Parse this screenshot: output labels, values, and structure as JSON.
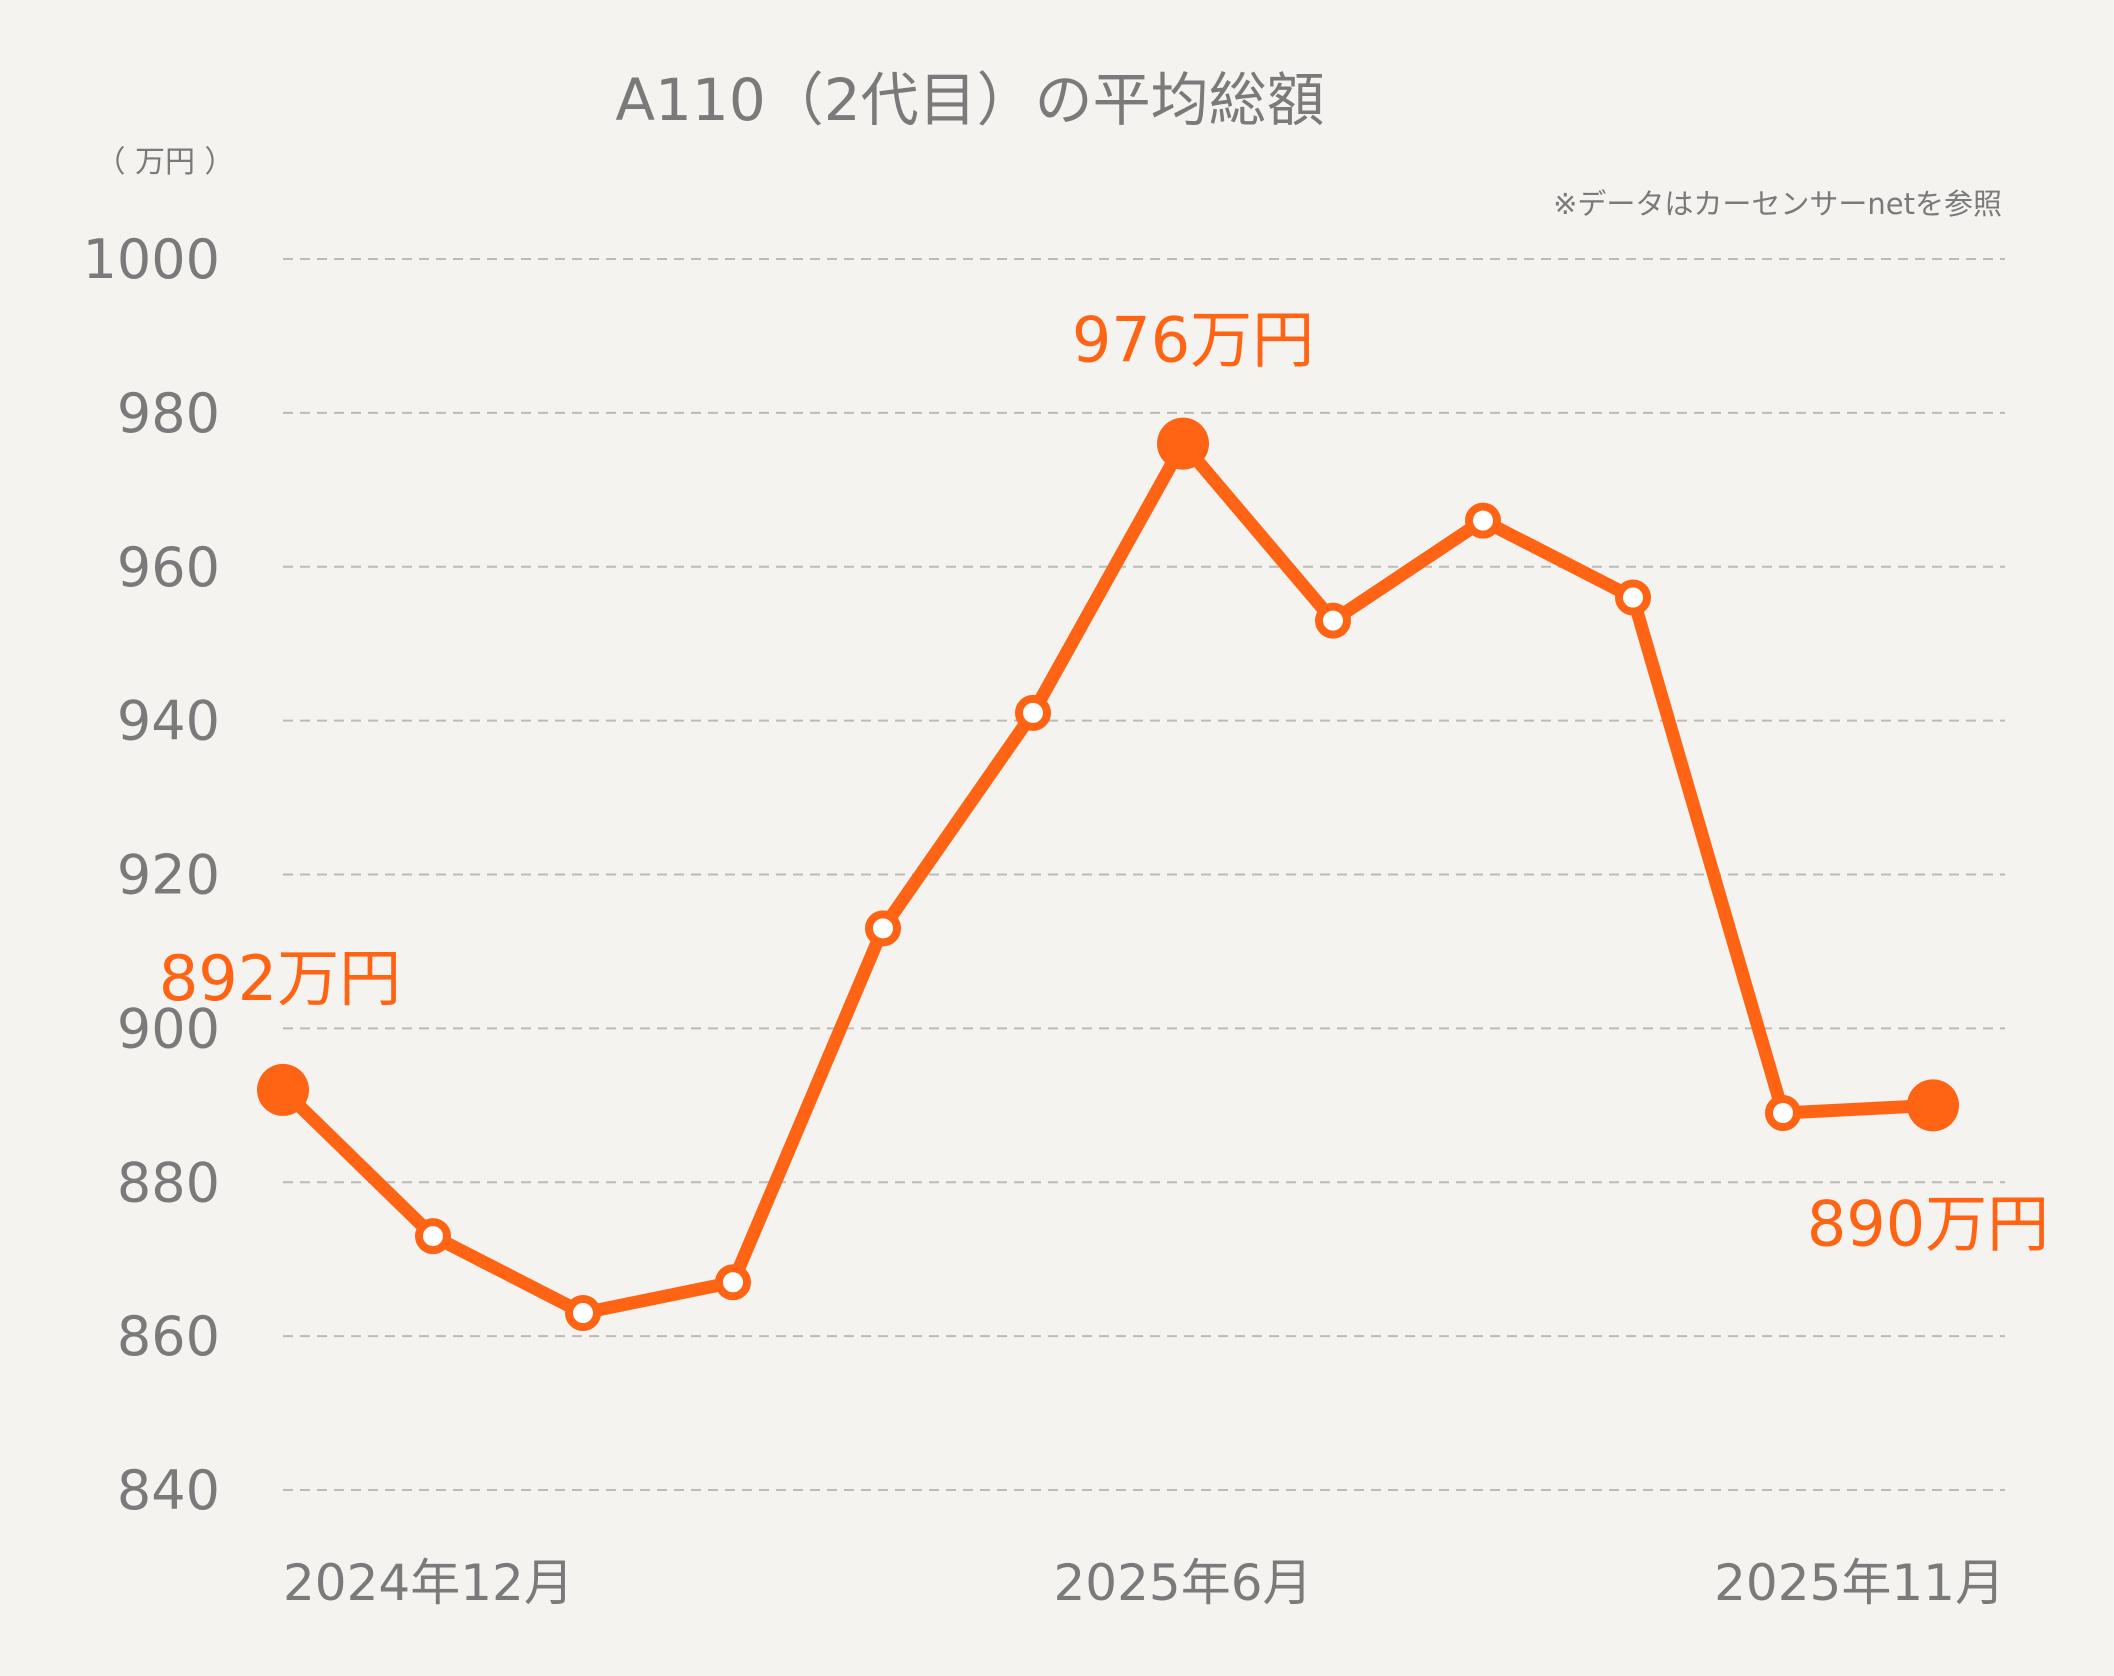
{
  "chart_data": {
    "type": "line",
    "title": "A110（2代目）の平均総額",
    "unit_label": "（ 万円 ）",
    "source_note": "※データはカーセンサーnetを参照",
    "ylim": [
      840,
      1000
    ],
    "yticks": [
      "1000",
      "980",
      "960",
      "940",
      "920",
      "900",
      "880",
      "860",
      "840"
    ],
    "x_labels": [
      {
        "index": 0,
        "label": "2024年12月"
      },
      {
        "index": 6,
        "label": "2025年6月"
      },
      {
        "index": 11,
        "label": "2025年11月"
      }
    ],
    "series": [
      {
        "values": [
          892,
          873,
          863,
          867,
          913,
          941,
          976,
          953,
          966,
          956,
          889,
          890
        ]
      }
    ],
    "highlights": [
      {
        "index": 0,
        "label": "892万円"
      },
      {
        "index": 6,
        "label": "976万円"
      },
      {
        "index": 11,
        "label": "890万円"
      }
    ],
    "line_color": "#ff6314",
    "grid": true,
    "legend": "none"
  }
}
